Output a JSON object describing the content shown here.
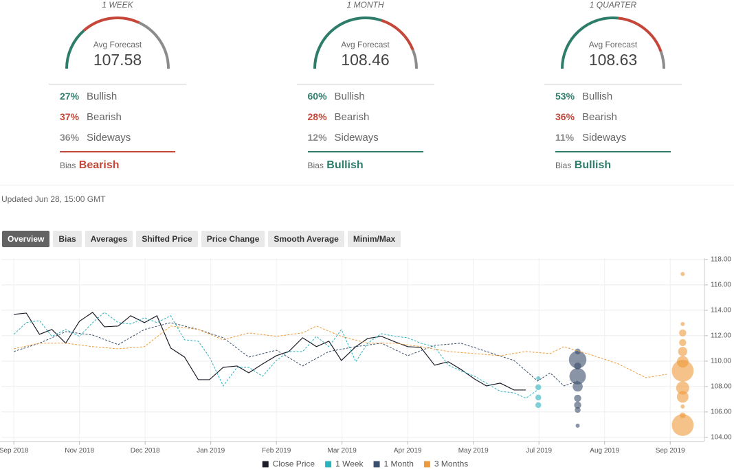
{
  "forecasts": [
    {
      "period": "1 WEEK",
      "avg_label": "Avg Forecast",
      "avg": 107.58,
      "rows": [
        {
          "pct": 27,
          "pct_label": "27%",
          "name": "Bullish",
          "color": "#2e7d6b"
        },
        {
          "pct": 37,
          "pct_label": "37%",
          "name": "Bearish",
          "color": "#c4473a"
        },
        {
          "pct": 36,
          "pct_label": "36%",
          "name": "Sideways",
          "color": "#8c8c8c"
        }
      ],
      "bias_label": "Bias",
      "bias": "Bearish",
      "bias_color": "#c4473a"
    },
    {
      "period": "1 MONTH",
      "avg_label": "Avg Forecast",
      "avg": 108.46,
      "rows": [
        {
          "pct": 60,
          "pct_label": "60%",
          "name": "Bullish",
          "color": "#2e7d6b"
        },
        {
          "pct": 28,
          "pct_label": "28%",
          "name": "Bearish",
          "color": "#c4473a"
        },
        {
          "pct": 12,
          "pct_label": "12%",
          "name": "Sideways",
          "color": "#8c8c8c"
        }
      ],
      "bias_label": "Bias",
      "bias": "Bullish",
      "bias_color": "#2e7d6b"
    },
    {
      "period": "1 QUARTER",
      "avg_label": "Avg Forecast",
      "avg": 108.63,
      "rows": [
        {
          "pct": 53,
          "pct_label": "53%",
          "name": "Bullish",
          "color": "#2e7d6b"
        },
        {
          "pct": 36,
          "pct_label": "36%",
          "name": "Bearish",
          "color": "#c4473a"
        },
        {
          "pct": 11,
          "pct_label": "11%",
          "name": "Sideways",
          "color": "#8c8c8c"
        }
      ],
      "bias_label": "Bias",
      "bias": "Bullish",
      "bias_color": "#2e7d6b"
    }
  ],
  "updated": "Updated Jun 28, 15:00 GMT",
  "tabs": [
    "Overview",
    "Bias",
    "Averages",
    "Shifted Price",
    "Price Change",
    "Smooth Average",
    "Minim/Max"
  ],
  "active_tab": 0,
  "chart_data": {
    "type": "line",
    "xlim": [
      -0.19,
      10.49
    ],
    "ylim": [
      103.7,
      118.1
    ],
    "xticks": [
      {
        "value": 0,
        "label": "Sep 2018"
      },
      {
        "value": 1,
        "label": "Nov 2018"
      },
      {
        "value": 2,
        "label": "Dec 2018"
      },
      {
        "value": 3,
        "label": "Jan 2019"
      },
      {
        "value": 4,
        "label": "Feb 2019"
      },
      {
        "value": 5,
        "label": "Mar 2019"
      },
      {
        "value": 6,
        "label": "Apr 2019"
      },
      {
        "value": 7,
        "label": "May 2019"
      },
      {
        "value": 8,
        "label": "Jul 2019"
      },
      {
        "value": 9,
        "label": "Aug 2019"
      },
      {
        "value": 10,
        "label": "Sep 2019"
      }
    ],
    "yticks": [
      {
        "value": 104,
        "label": "104.00"
      },
      {
        "value": 106,
        "label": "106.00"
      },
      {
        "value": 108,
        "label": "108.00"
      },
      {
        "value": 110,
        "label": "110.00"
      },
      {
        "value": 112,
        "label": "112.00"
      },
      {
        "value": 114,
        "label": "114.00"
      },
      {
        "value": 116,
        "label": "116.00"
      },
      {
        "value": 118,
        "label": "118.00"
      }
    ],
    "grid": true,
    "legend": "bottom",
    "series": [
      {
        "name": "Close Price",
        "color": "#1c1c28",
        "dashed": false,
        "x": [
          0,
          0.19,
          0.39,
          0.58,
          0.79,
          1.0,
          1.2,
          1.38,
          1.59,
          1.78,
          1.99,
          2.18,
          2.39,
          2.6,
          2.81,
          2.98,
          3.19,
          3.4,
          3.58,
          3.79,
          4.0,
          4.19,
          4.4,
          4.61,
          4.8,
          4.99,
          5.21,
          5.39,
          5.6,
          5.81,
          6.0,
          6.2,
          6.41,
          6.62,
          6.81,
          7.02,
          7.2,
          7.41,
          7.62,
          7.8
        ],
        "values": [
          113.68,
          113.78,
          112.11,
          112.49,
          111.41,
          113.14,
          113.84,
          112.7,
          112.76,
          113.57,
          113.03,
          113.57,
          111.03,
          110.32,
          108.54,
          108.54,
          109.51,
          109.62,
          109.08,
          109.78,
          110.43,
          110.76,
          111.84,
          111.14,
          111.57,
          110.05,
          111.14,
          111.78,
          111.95,
          111.51,
          111.14,
          111.08,
          109.68,
          109.95,
          109.35,
          108.59,
          108.05,
          108.27,
          107.73,
          107.73
        ]
      },
      {
        "name": "1 Week",
        "color": "#2bb3bd",
        "dashed": true,
        "x": [
          0,
          0.19,
          0.39,
          0.58,
          0.79,
          1.0,
          1.2,
          1.38,
          1.59,
          1.78,
          1.99,
          2.18,
          2.39,
          2.6,
          2.81,
          2.98,
          3.19,
          3.4,
          3.58,
          3.79,
          4.0,
          4.19,
          4.4,
          4.61,
          4.8,
          4.99,
          5.21,
          5.39,
          5.6,
          5.81,
          6.0,
          6.2,
          6.41,
          6.62,
          6.81,
          7.02,
          7.2,
          7.41,
          7.62,
          7.8,
          7.98
        ],
        "values": [
          112.11,
          113.03,
          113.19,
          111.95,
          112.49,
          111.95,
          113.03,
          113.84,
          113.03,
          112.92,
          113.41,
          113.03,
          113.57,
          111.68,
          111.57,
          110.32,
          108.05,
          109.51,
          109.51,
          108.81,
          110.05,
          110.76,
          110.76,
          111.95,
          111.14,
          112.49,
          109.95,
          111.41,
          112.16,
          111.95,
          111.84,
          111.41,
          111.14,
          109.68,
          109.24,
          108.81,
          108.27,
          107.62,
          107.51,
          107.08,
          107.73
        ],
        "points": {
          "x": [
            7.99,
            7.99,
            7.99,
            7.99
          ],
          "values": [
            108.65,
            107.95,
            107.14,
            106.54
          ],
          "sizes": [
            1,
            2,
            2,
            2
          ]
        }
      },
      {
        "name": "1 Month",
        "color": "#3a4f6b",
        "dashed": true,
        "x": [
          0,
          0.39,
          0.79,
          1.2,
          1.59,
          1.99,
          2.39,
          2.81,
          3.19,
          3.58,
          4.0,
          4.4,
          4.8,
          5.21,
          5.6,
          6.0,
          6.41,
          6.81,
          7.2,
          7.62,
          7.98,
          8.17,
          8.38,
          8.59
        ],
        "values": [
          110.76,
          111.41,
          112.32,
          112.05,
          111.3,
          112.49,
          113.03,
          112.49,
          111.84,
          110.32,
          110.86,
          109.62,
          110.76,
          111.14,
          111.41,
          110.43,
          111.24,
          111.41,
          110.76,
          110.05,
          108.43,
          109.08,
          108.05,
          108.43
        ],
        "points": {
          "x": [
            8.59,
            8.59,
            8.59,
            8.59,
            8.59,
            8.59,
            8.59,
            8.59,
            8.59
          ],
          "values": [
            110.76,
            110.11,
            108.81,
            108.0,
            107.08,
            106.54,
            106.16,
            104.92,
            109.62
          ],
          "sizes": [
            2,
            18,
            16,
            6,
            3,
            3,
            2,
            1,
            3
          ]
        }
      },
      {
        "name": "3 Months",
        "color": "#ee9a3a",
        "dashed": true,
        "x": [
          0,
          0.39,
          0.79,
          1.2,
          1.59,
          1.99,
          2.39,
          2.81,
          3.19,
          3.58,
          4.0,
          4.4,
          4.61,
          4.99,
          5.39,
          5.81,
          6.2,
          6.62,
          7.02,
          7.41,
          7.8,
          8.17,
          8.38,
          8.8,
          9.21,
          9.63,
          9.95
        ],
        "values": [
          110.97,
          111.41,
          111.41,
          111.14,
          110.97,
          111.14,
          112.76,
          112.49,
          111.68,
          112.22,
          111.95,
          112.22,
          112.76,
          111.95,
          111.41,
          111.41,
          111.14,
          110.76,
          110.59,
          110.43,
          110.76,
          110.59,
          111.14,
          110.49,
          109.78,
          108.7,
          108.97
        ],
        "points": {
          "x": [
            10.19,
            10.19,
            10.19,
            10.19,
            10.19,
            10.19,
            10.19,
            10.19,
            10.19,
            10.19,
            10.19,
            10.19
          ],
          "values": [
            116.86,
            112.92,
            112.22,
            111.46,
            110.76,
            109.95,
            109.24,
            107.89,
            107.19,
            106.43,
            105.73,
            104.97
          ],
          "sizes": [
            1,
            1,
            3,
            3,
            5,
            8,
            28,
            10,
            8,
            1,
            2,
            28
          ]
        }
      }
    ]
  }
}
